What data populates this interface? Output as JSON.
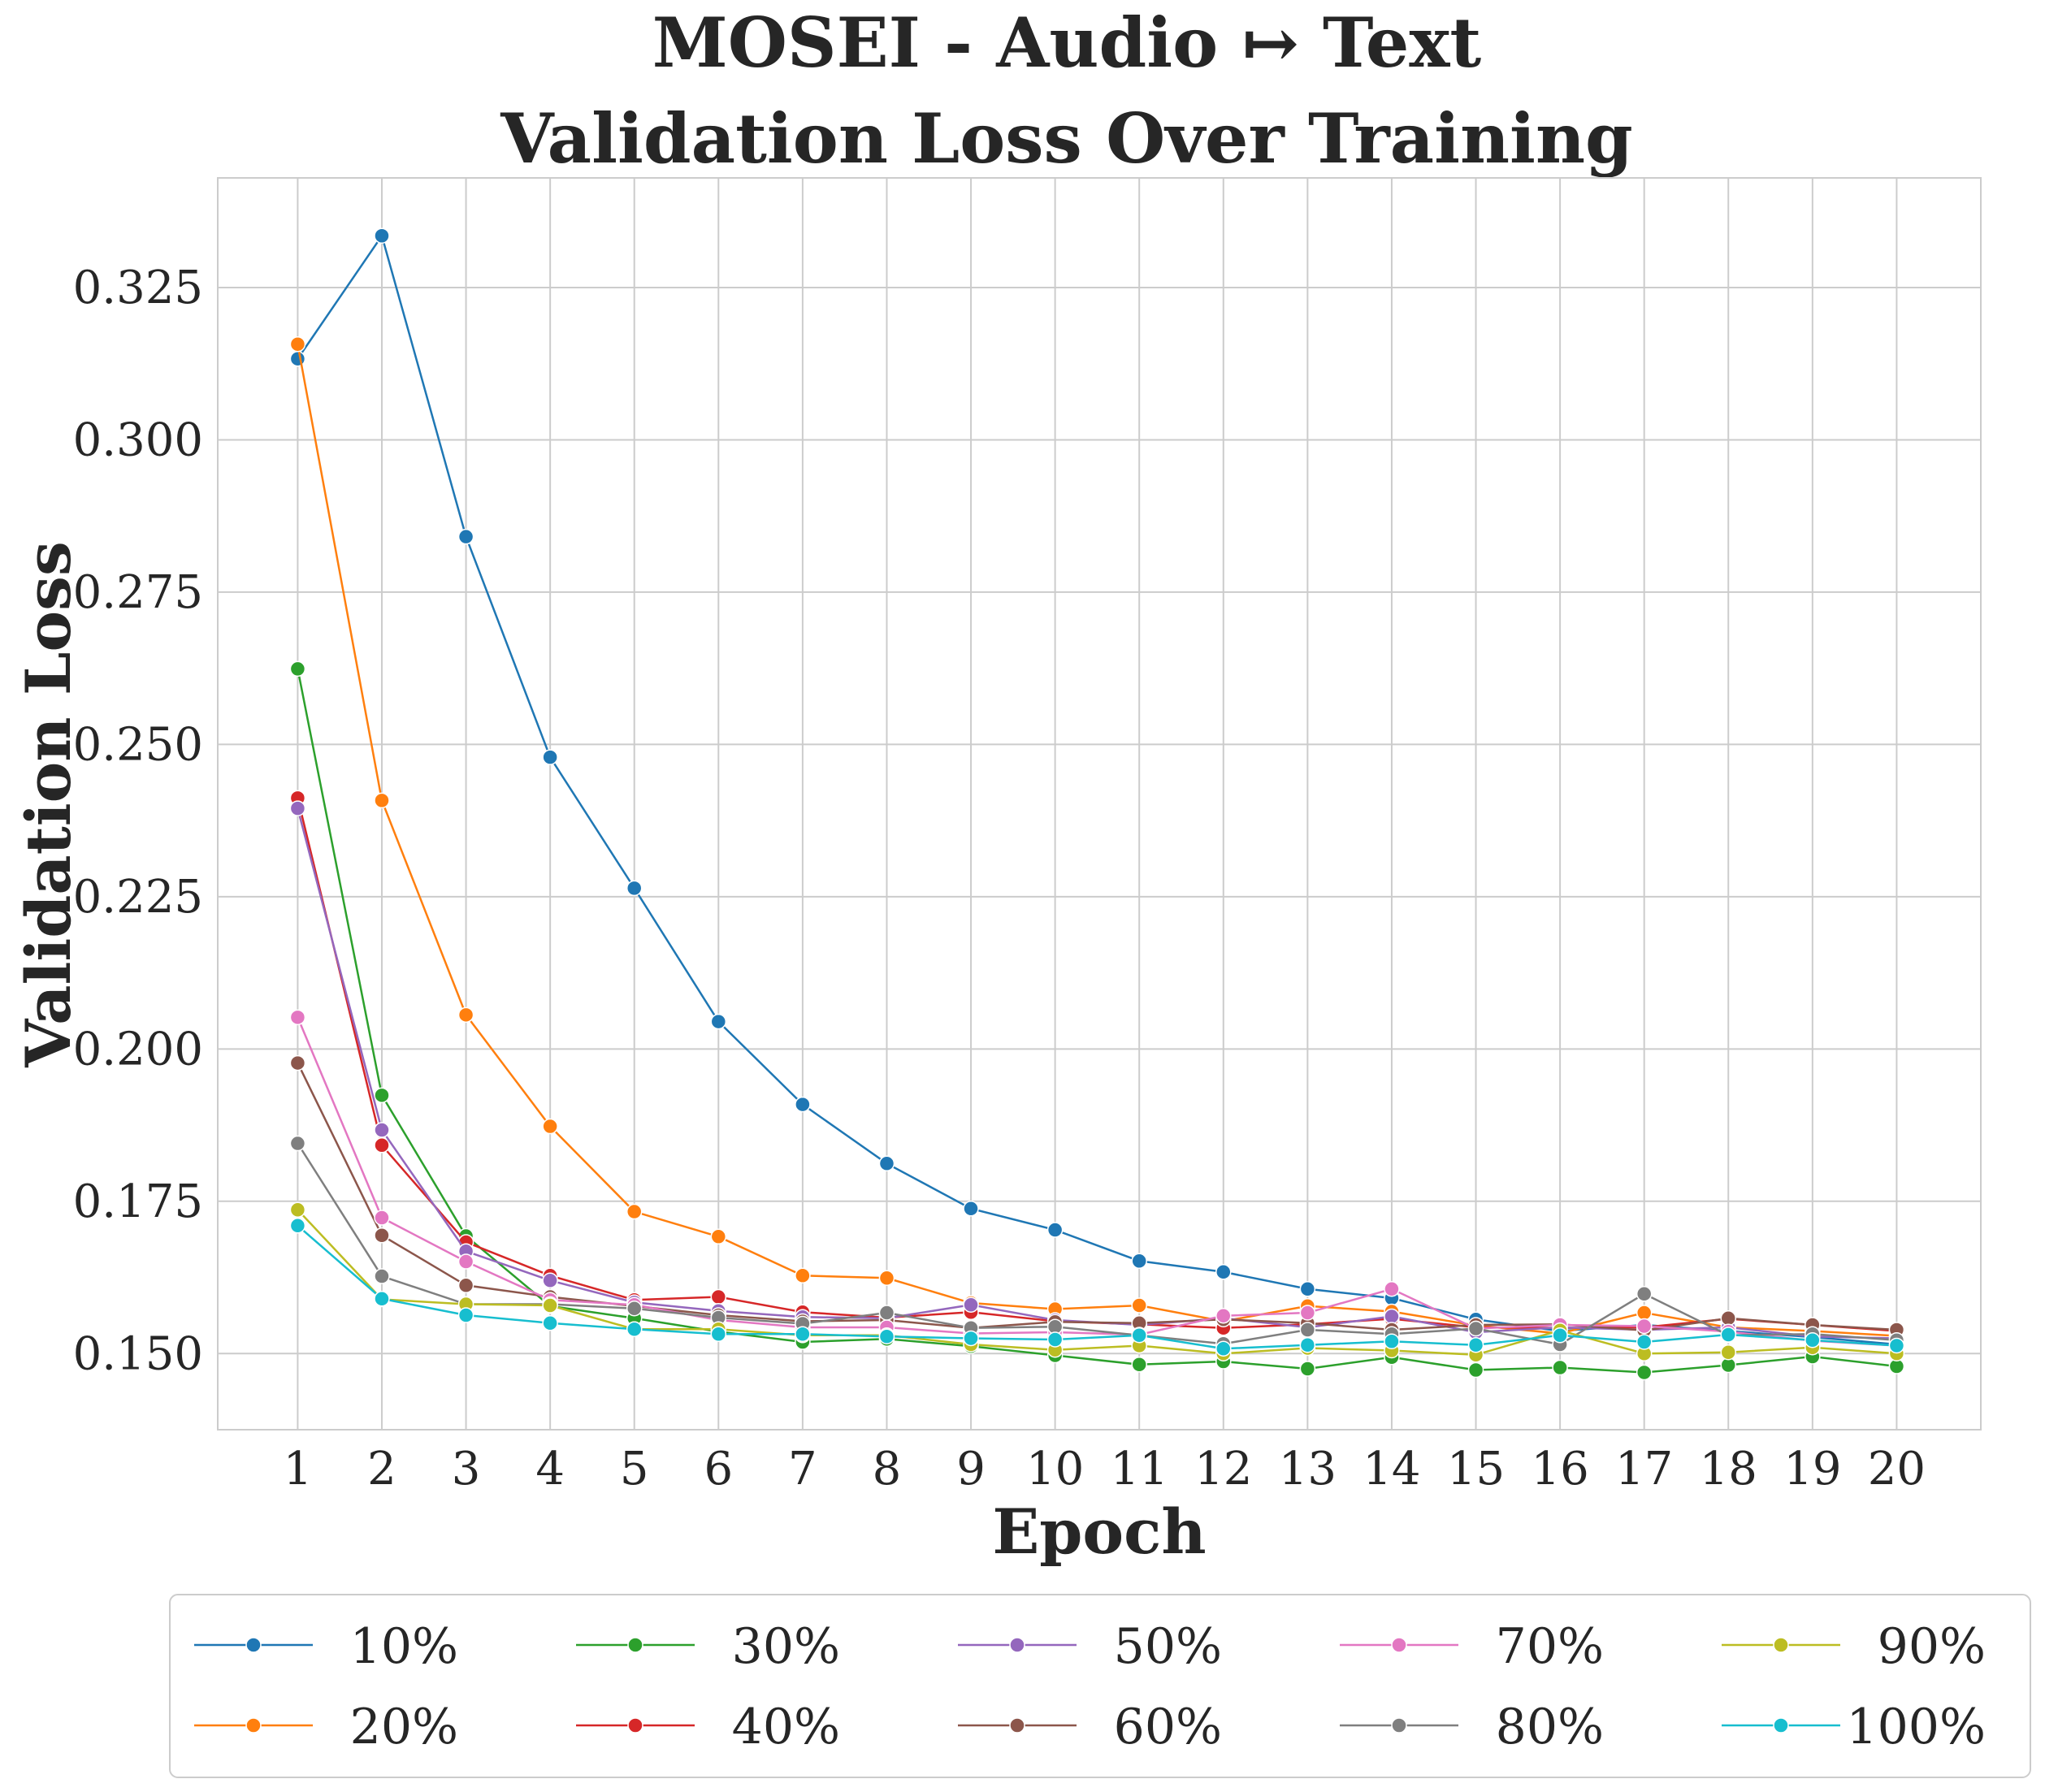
{
  "chart_data": {
    "type": "line",
    "title_lines": [
      "MOSEI - Audio ↦ Text",
      "Validation Loss Over Training"
    ],
    "xlabel": "Epoch",
    "ylabel": "Validation Loss",
    "x": [
      1,
      2,
      3,
      4,
      5,
      6,
      7,
      8,
      9,
      10,
      11,
      12,
      13,
      14,
      15,
      16,
      17,
      18,
      19,
      20
    ],
    "xlim": [
      0.05,
      21.0
    ],
    "ylim": [
      0.1375,
      0.343
    ],
    "yticks": [
      "0.150",
      "0.175",
      "0.200",
      "0.225",
      "0.250",
      "0.275",
      "0.300",
      "0.325"
    ],
    "grid": true,
    "legend_position": "below",
    "legend_columns": 5,
    "series": [
      {
        "name": "10%",
        "color": "#1f77b4",
        "values": [
          0.3133,
          0.3335,
          0.2841,
          0.2479,
          0.2264,
          0.2045,
          0.1909,
          0.1812,
          0.1738,
          0.1703,
          0.1652,
          0.1634,
          0.1606,
          0.1591,
          0.1556,
          0.1537,
          0.1547,
          0.1537,
          0.1527,
          0.1515
        ]
      },
      {
        "name": "20%",
        "color": "#ff7f0e",
        "values": [
          0.3157,
          0.2408,
          0.2056,
          0.1873,
          0.1733,
          0.1692,
          0.1628,
          0.1624,
          0.1583,
          0.1573,
          0.1579,
          0.1553,
          0.1578,
          0.1569,
          0.1546,
          0.1533,
          0.1567,
          0.1543,
          0.1537,
          0.1529
        ]
      },
      {
        "name": "30%",
        "color": "#2ca02c",
        "values": [
          0.2624,
          0.1924,
          0.1693,
          0.1578,
          0.1558,
          0.1536,
          0.1519,
          0.1524,
          0.1512,
          0.1497,
          0.1482,
          0.1487,
          0.1475,
          0.1494,
          0.1473,
          0.1477,
          0.1469,
          0.1481,
          0.1495,
          0.1479
        ]
      },
      {
        "name": "40%",
        "color": "#d62728",
        "values": [
          0.2412,
          0.1842,
          0.1683,
          0.1628,
          0.1588,
          0.1593,
          0.1568,
          0.1559,
          0.1568,
          0.1553,
          0.1548,
          0.1542,
          0.1548,
          0.1557,
          0.1543,
          0.1542,
          0.1543,
          0.1557,
          0.1547,
          0.1537
        ]
      },
      {
        "name": "50%",
        "color": "#9467bd",
        "values": [
          0.2395,
          0.1867,
          0.1668,
          0.162,
          0.1584,
          0.157,
          0.156,
          0.1558,
          0.158,
          0.1555,
          0.1547,
          0.1558,
          0.1543,
          0.1561,
          0.1535,
          0.1543,
          0.1539,
          0.1543,
          0.1528,
          0.1525
        ]
      },
      {
        "name": "60%",
        "color": "#8c564b",
        "values": [
          0.1977,
          0.1694,
          0.1612,
          0.1593,
          0.1578,
          0.1563,
          0.1553,
          0.1555,
          0.1542,
          0.1552,
          0.155,
          0.1556,
          0.155,
          0.1539,
          0.1547,
          0.1548,
          0.1538,
          0.1558,
          0.1547,
          0.1539
        ]
      },
      {
        "name": "70%",
        "color": "#e377c2",
        "values": [
          0.2052,
          0.1723,
          0.1651,
          0.1588,
          0.158,
          0.1555,
          0.1543,
          0.1543,
          0.1533,
          0.1535,
          0.1531,
          0.1562,
          0.1567,
          0.1606,
          0.1541,
          0.1547,
          0.1545,
          0.1536,
          0.1521,
          0.1513
        ]
      },
      {
        "name": "80%",
        "color": "#7f7f7f",
        "values": [
          0.1845,
          0.1627,
          0.1581,
          0.1581,
          0.1574,
          0.1559,
          0.1549,
          0.1567,
          0.1542,
          0.1544,
          0.153,
          0.1516,
          0.1539,
          0.1532,
          0.1541,
          0.1515,
          0.1598,
          0.153,
          0.1532,
          0.1522
        ]
      },
      {
        "name": "90%",
        "color": "#bcbd22",
        "values": [
          0.1736,
          0.1589,
          0.1581,
          0.1579,
          0.154,
          0.154,
          0.153,
          0.153,
          0.1515,
          0.1506,
          0.1513,
          0.15,
          0.1509,
          0.1505,
          0.1498,
          0.1538,
          0.15,
          0.1502,
          0.151,
          0.15
        ]
      },
      {
        "name": "100%",
        "color": "#17becf",
        "values": [
          0.171,
          0.159,
          0.1563,
          0.155,
          0.154,
          0.1532,
          0.1532,
          0.1528,
          0.1525,
          0.1523,
          0.153,
          0.1508,
          0.1514,
          0.152,
          0.1514,
          0.153,
          0.1519,
          0.1531,
          0.1522,
          0.1513
        ]
      }
    ]
  }
}
